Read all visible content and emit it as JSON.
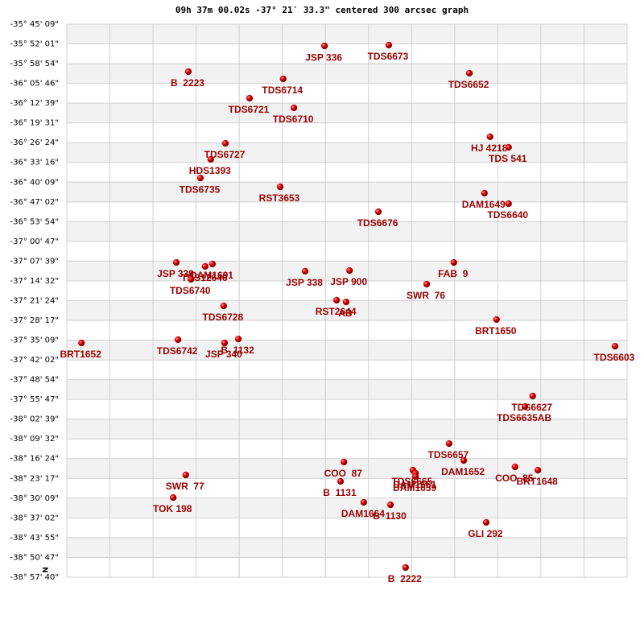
{
  "chart_data": {
    "type": "scatter",
    "title": "09h 37m 00.02s -37° 21′ 33.3\" centered 300 arcsec graph",
    "annotation": "N",
    "x": [
      5.98,
      7.47,
      2.82,
      9.34,
      5.02,
      4.24,
      5.27,
      9.82,
      10.25,
      3.68,
      3.34,
      3.1,
      4.95,
      9.69,
      10.25,
      7.23,
      8.98,
      2.54,
      3.38,
      3.21,
      2.88,
      5.53,
      6.56,
      8.35,
      6.26,
      6.48,
      3.64,
      9.97,
      0.34,
      2.58,
      3.66,
      3.98,
      12.72,
      10.81,
      10.63,
      8.87,
      9.21,
      6.43,
      10.4,
      10.93,
      8.03,
      8.09,
      8.09,
      2.76,
      6.35,
      2.47,
      6.89,
      7.51,
      9.73,
      7.86
    ],
    "values": [
      -35.879,
      -35.874,
      -36.028,
      -36.037,
      -36.07,
      -36.182,
      -36.238,
      -36.406,
      -36.467,
      -36.444,
      -36.537,
      -36.645,
      -36.696,
      -36.733,
      -36.794,
      -36.841,
      -37.135,
      -37.135,
      -37.144,
      -37.158,
      -37.233,
      -37.186,
      -37.182,
      -37.261,
      -37.354,
      -37.364,
      -37.387,
      -37.466,
      -37.602,
      -37.583,
      -37.602,
      -37.579,
      -37.621,
      -37.91,
      -37.971,
      -38.186,
      -38.284,
      -38.293,
      -38.321,
      -38.34,
      -38.34,
      -38.358,
      -38.377,
      -38.368,
      -38.405,
      -38.499,
      -38.527,
      -38.541,
      -38.643,
      -38.905
    ],
    "point_labels": [
      "JSP 336",
      "TDS6673",
      "B  2223",
      "TDS6652",
      "TDS6714",
      "TDS6721",
      "TDS6710",
      "HJ 4218",
      "TDS 541",
      "TDS6727",
      "HDS1393",
      "TDS6735",
      "RST3653",
      "DAM1649",
      "TDS6640",
      "TDS6676",
      "FAB  9",
      "JSP 339",
      "DAM1691",
      "TDS12646",
      "TDS6740",
      "JSP 338",
      "JSP 900",
      "SWR  76",
      "RST2644",
      "AB",
      "TDS6728",
      "BRT1650",
      "BRT1652",
      "TDS6742",
      "JSP 340",
      "B  1132",
      "TDS6603",
      "TDS6627",
      "TDS6635AB",
      "TDS6657",
      "DAM1652",
      "COO  87",
      "COO  85",
      "BRT1648",
      "TDS6665",
      "DAM1661",
      "DAM1659",
      "SWR  77",
      "B  1131",
      "TOK 198",
      "DAM1664",
      "B  1130",
      "GLI 292",
      "B  2222"
    ],
    "color": "#cc0000",
    "label_color": "#990000",
    "xlim": [
      0,
      13
    ],
    "ylim": [
      -38.9611,
      -35.7525
    ],
    "yticks": [
      {
        "value": -35.7525,
        "label": "-35° 45' 09\""
      },
      {
        "value": -35.8669,
        "label": "-35° 52' 01\""
      },
      {
        "value": -35.9817,
        "label": "-35° 58' 54\""
      },
      {
        "value": -36.0961,
        "label": "-36° 05' 46\""
      },
      {
        "value": -36.2108,
        "label": "-36° 12' 39\""
      },
      {
        "value": -36.3253,
        "label": "-36° 19' 31\""
      },
      {
        "value": -36.44,
        "label": "-36° 26' 24\""
      },
      {
        "value": -36.5544,
        "label": "-36° 33' 16\""
      },
      {
        "value": -36.6692,
        "label": "-36° 40' 09\""
      },
      {
        "value": -36.7839,
        "label": "-36° 47' 02\""
      },
      {
        "value": -36.8983,
        "label": "-36° 53' 54\""
      },
      {
        "value": -37.0131,
        "label": "-37° 00' 47\""
      },
      {
        "value": -37.1275,
        "label": "-37° 07' 39\""
      },
      {
        "value": -37.2422,
        "label": "-37° 14' 32\""
      },
      {
        "value": -37.3567,
        "label": "-37° 21' 24\""
      },
      {
        "value": -37.4714,
        "label": "-37° 28' 17\""
      },
      {
        "value": -37.5858,
        "label": "-37° 35' 09\""
      },
      {
        "value": -37.7006,
        "label": "-37° 42' 02\""
      },
      {
        "value": -37.815,
        "label": "-37° 48' 54\""
      },
      {
        "value": -37.9297,
        "label": "-37° 55' 47\""
      },
      {
        "value": -38.0442,
        "label": "-38° 02' 39\""
      },
      {
        "value": -38.1589,
        "label": "-38° 09' 32\""
      },
      {
        "value": -38.2733,
        "label": "-38° 16' 24\""
      },
      {
        "value": -38.3881,
        "label": "-38° 23' 17\""
      },
      {
        "value": -38.5025,
        "label": "-38° 30' 09\""
      },
      {
        "value": -38.6172,
        "label": "-38° 37' 02\""
      },
      {
        "value": -38.7319,
        "label": "-38° 43' 55\""
      },
      {
        "value": -38.8464,
        "label": "-38° 50' 47\""
      },
      {
        "value": -38.9611,
        "label": "-38° 57' 40\""
      }
    ],
    "grid": true
  }
}
